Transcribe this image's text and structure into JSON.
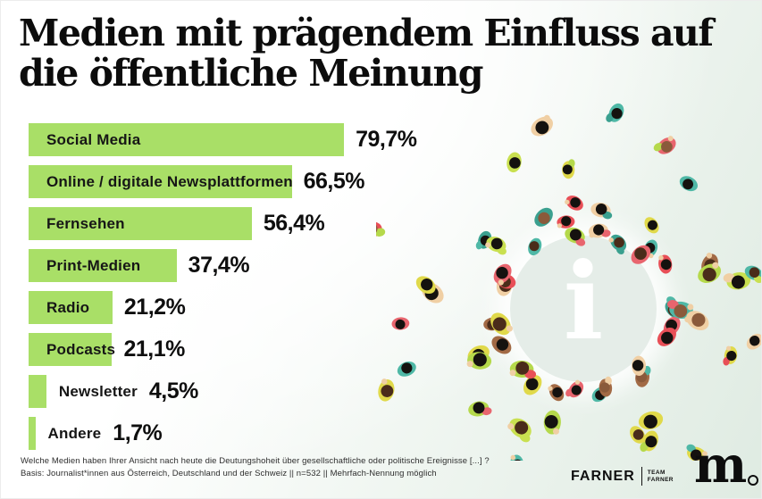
{
  "title": {
    "line1": "Medien mit prägendem Einfluss auf",
    "line2": "die öffentliche Meinung"
  },
  "chart_data": {
    "type": "bar",
    "orientation": "horizontal",
    "title": "Medien mit prägendem Einfluss auf die öffentliche Meinung",
    "categories": [
      "Social Media",
      "Online / digitale Newsplattformen",
      "Fernsehen",
      "Print-Medien",
      "Radio",
      "Podcasts",
      "Newsletter",
      "Andere"
    ],
    "values": [
      79.7,
      66.5,
      56.4,
      37.4,
      21.2,
      21.1,
      4.5,
      1.7
    ],
    "value_labels": [
      "79,7%",
      "66,5%",
      "56,4%",
      "37,4%",
      "21,2%",
      "21,1%",
      "4,5%",
      "1,7%"
    ],
    "unit": "%",
    "xlim": [
      0,
      100
    ],
    "grid": false,
    "bar_color": "#a9df67",
    "label_color": "#161616"
  },
  "footnote": {
    "line1": "Welche Medien haben Ihrer Ansicht nach heute die Deutungshoheit über gesellschaftliche oder politische Ereignisse [...] ?",
    "line2": "Basis: Journalist*innen aus Österreich, Deutschland und der Schweiz  || n=532 || Mehrfach-Nennung möglich"
  },
  "logos": {
    "farner": "FARNER",
    "team_line1": "TEAM",
    "team_line2": "FARNER",
    "m_letter": "m"
  },
  "illustration": {
    "info_icon": "i",
    "circle_color": "#e5ede8",
    "palette": [
      "#4fb8a6",
      "#e84f57",
      "#b5d94b",
      "#e0d94a",
      "#f0cfa4",
      "#a26a45",
      "#e8656e",
      "#3aa08f",
      "#c9e050"
    ],
    "head_colors": [
      "#15120f",
      "#15120f",
      "#15120f",
      "#4a2c1a",
      "#8a5a3b"
    ],
    "skin_color": "#f0cfa4"
  }
}
